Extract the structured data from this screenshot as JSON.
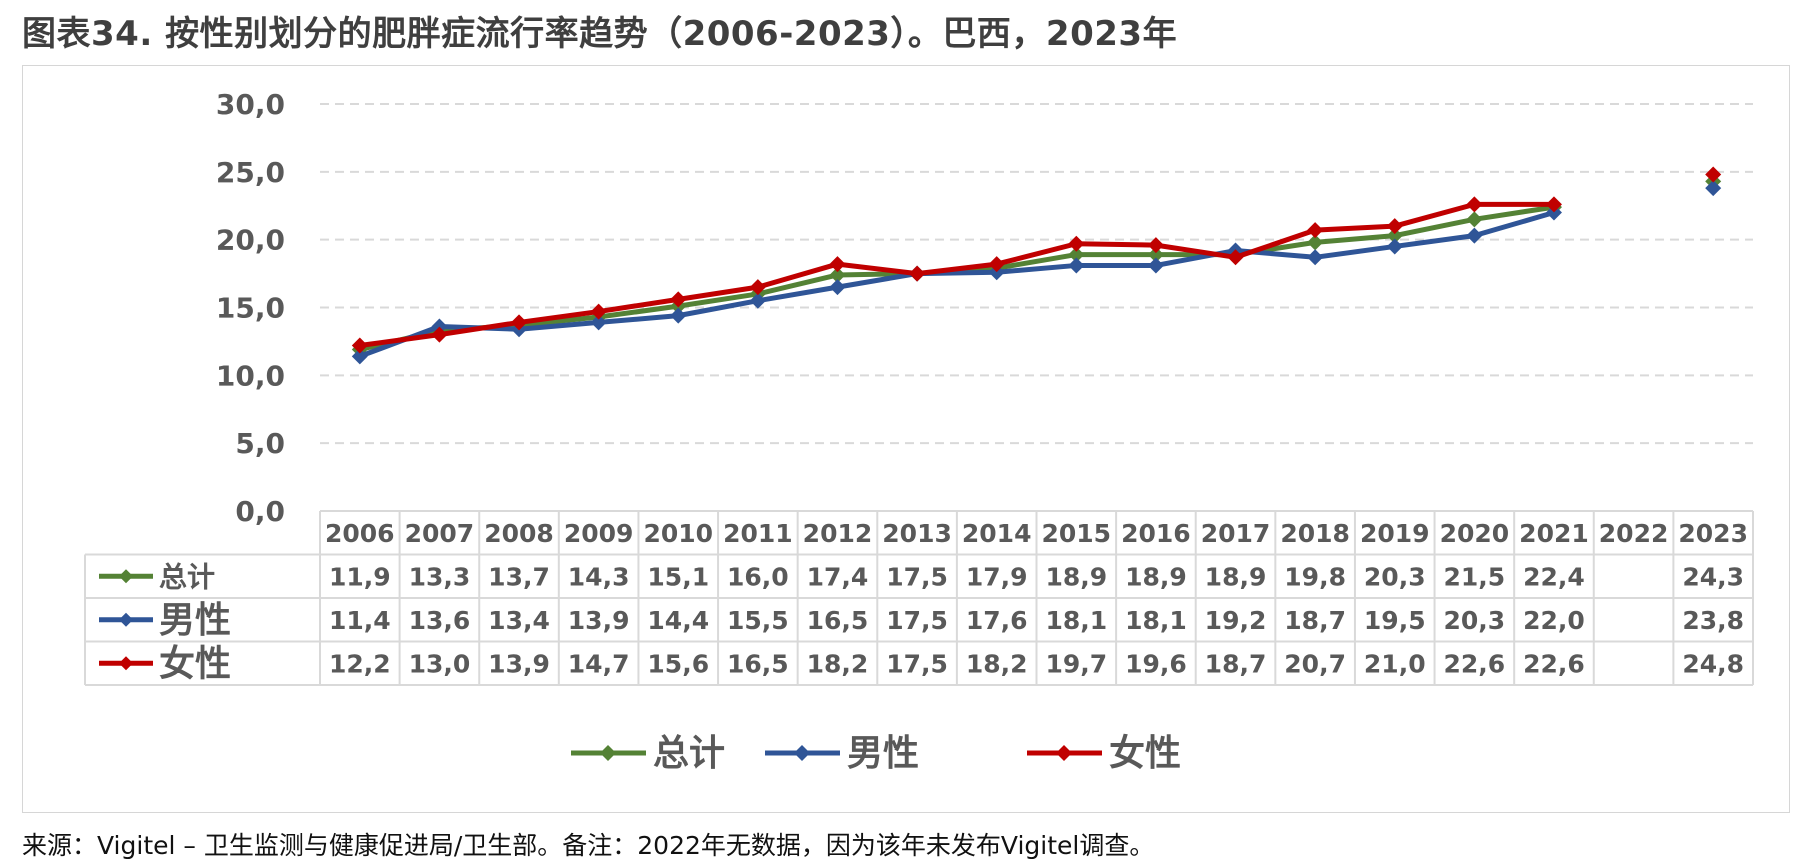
{
  "title": "图表34. 按性别划分的肥胖症流行率趋势（2006-2023）。巴西，2023年",
  "footer": "来源：Vigitel – 卫生监测与健康促进局/卫生部。备注：2022年无数据，因为该年未发布Vigitel调查。",
  "chart_data": {
    "type": "line",
    "categories": [
      "2006",
      "2007",
      "2008",
      "2009",
      "2010",
      "2011",
      "2012",
      "2013",
      "2014",
      "2015",
      "2016",
      "2017",
      "2018",
      "2019",
      "2020",
      "2021",
      "2022",
      "2023"
    ],
    "series": [
      {
        "name": "总计",
        "color": "#548235",
        "values": [
          11.9,
          13.3,
          13.7,
          14.3,
          15.1,
          16.0,
          17.4,
          17.5,
          17.9,
          18.9,
          18.9,
          18.9,
          19.8,
          20.3,
          21.5,
          22.4,
          null,
          24.3
        ],
        "labels": [
          "11,9",
          "13,3",
          "13,7",
          "14,3",
          "15,1",
          "16,0",
          "17,4",
          "17,5",
          "17,9",
          "18,9",
          "18,9",
          "18,9",
          "19,8",
          "20,3",
          "21,5",
          "22,4",
          "",
          "24,3"
        ]
      },
      {
        "name": "男性",
        "color": "#2f5597",
        "values": [
          11.4,
          13.6,
          13.4,
          13.9,
          14.4,
          15.5,
          16.5,
          17.5,
          17.6,
          18.1,
          18.1,
          19.2,
          18.7,
          19.5,
          20.3,
          22.0,
          null,
          23.8
        ],
        "labels": [
          "11,4",
          "13,6",
          "13,4",
          "13,9",
          "14,4",
          "15,5",
          "16,5",
          "17,5",
          "17,6",
          "18,1",
          "18,1",
          "19,2",
          "18,7",
          "19,5",
          "20,3",
          "22,0",
          "",
          "23,8"
        ]
      },
      {
        "name": "女性",
        "color": "#c00000",
        "values": [
          12.2,
          13.0,
          13.9,
          14.7,
          15.6,
          16.5,
          18.2,
          17.5,
          18.2,
          19.7,
          19.6,
          18.7,
          20.7,
          21.0,
          22.6,
          22.6,
          null,
          24.8
        ],
        "labels": [
          "12,2",
          "13,0",
          "13,9",
          "14,7",
          "15,6",
          "16,5",
          "18,2",
          "17,5",
          "18,2",
          "19,7",
          "19,6",
          "18,7",
          "20,7",
          "21,0",
          "22,6",
          "22,6",
          "",
          "24,8"
        ]
      }
    ],
    "ylim": [
      0,
      30
    ],
    "yticks": [
      0,
      5,
      10,
      15,
      20,
      25,
      30
    ],
    "ytick_labels": [
      "0,0",
      "5,0",
      "10,0",
      "15,0",
      "20,0",
      "25,0",
      "30,0"
    ],
    "grid": "horizontal dashed",
    "legend": "bottom-center",
    "data_table": true
  }
}
